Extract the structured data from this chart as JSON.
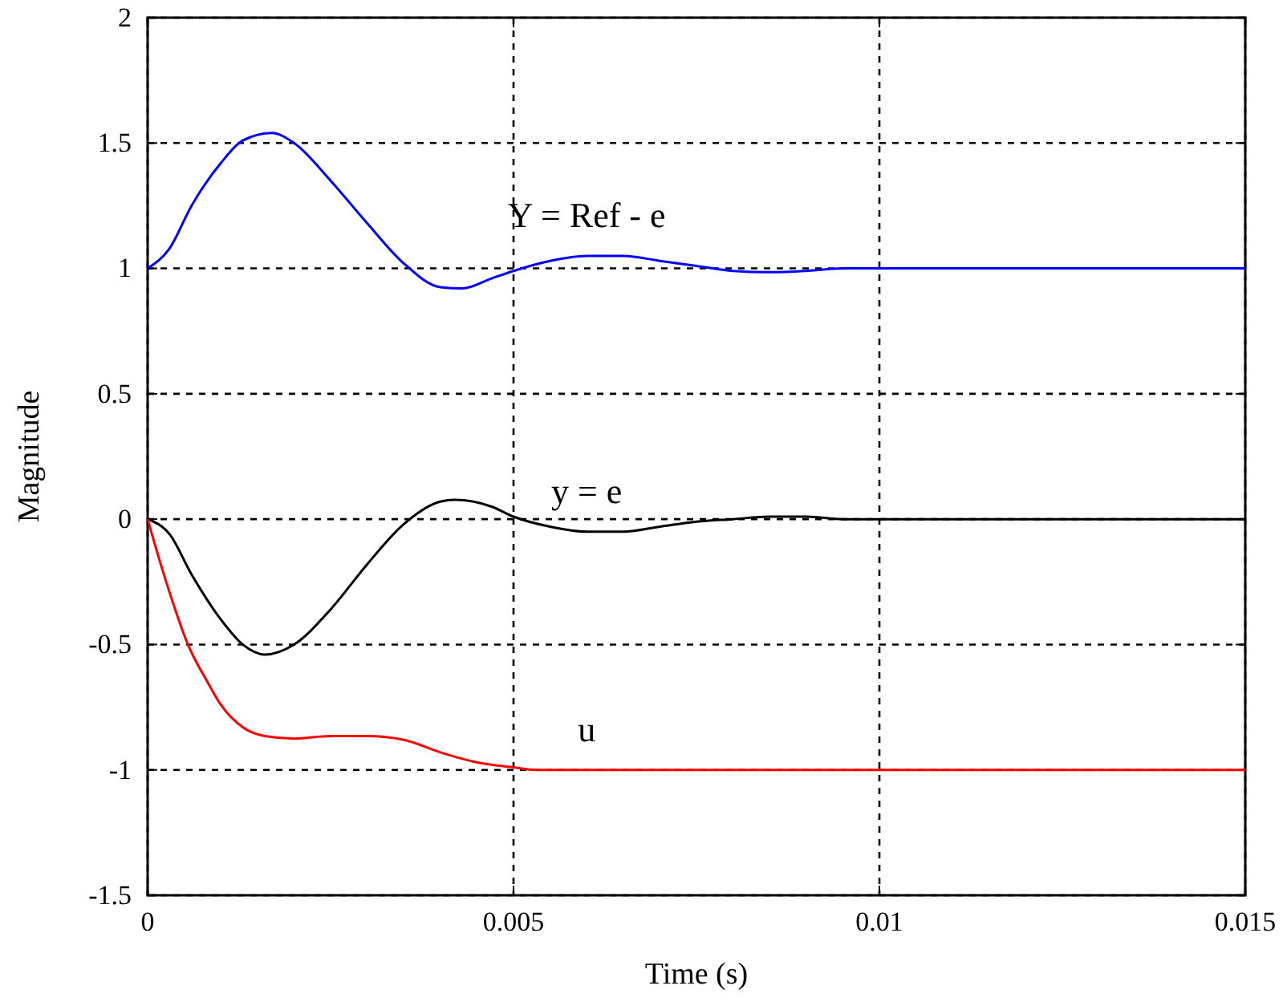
{
  "chart_data": {
    "type": "line",
    "xlabel": "Time (s)",
    "ylabel": "Magnitude",
    "xlim": [
      0,
      0.015
    ],
    "xticks": [
      0,
      0.005,
      0.01,
      0.015
    ],
    "ylim": [
      -1.5,
      2
    ],
    "yticks": [
      -1.5,
      -1,
      -0.5,
      0,
      0.5,
      1,
      1.5,
      2
    ],
    "grid": true,
    "line_style": "solid",
    "marker": "none",
    "series": [
      {
        "name": "Y = Ref - e",
        "color": "#0000ff",
        "x": [
          0,
          0.0003,
          0.0006,
          0.001,
          0.0013,
          0.0017,
          0.002,
          0.0025,
          0.003,
          0.0035,
          0.004,
          0.0043,
          0.0047,
          0.005,
          0.0055,
          0.006,
          0.0065,
          0.007,
          0.0075,
          0.008,
          0.0085,
          0.009,
          0.0095,
          0.015
        ],
        "values": [
          1,
          1.08,
          1.25,
          1.42,
          1.51,
          1.54,
          1.5,
          1.35,
          1.18,
          1.02,
          0.925,
          0.92,
          0.96,
          0.99,
          1.03,
          1.05,
          1.05,
          1.03,
          1.01,
          0.99,
          0.985,
          0.99,
          1,
          1
        ]
      },
      {
        "name": "y = e",
        "color": "#000000",
        "x": [
          0,
          0.0003,
          0.0006,
          0.001,
          0.0013,
          0.0016,
          0.002,
          0.0025,
          0.003,
          0.0035,
          0.004,
          0.0042,
          0.0047,
          0.005,
          0.0055,
          0.006,
          0.0065,
          0.007,
          0.0075,
          0.008,
          0.0085,
          0.009,
          0.0095,
          0.015
        ],
        "values": [
          0,
          -0.06,
          -0.22,
          -0.4,
          -0.5,
          -0.54,
          -0.5,
          -0.36,
          -0.18,
          -0.02,
          0.07,
          0.077,
          0.05,
          0.01,
          -0.03,
          -0.05,
          -0.05,
          -0.03,
          -0.01,
          0,
          0.01,
          0.01,
          0,
          0
        ]
      },
      {
        "name": "u",
        "color": "#ff0000",
        "x": [
          0,
          0.0002,
          0.0004,
          0.00055,
          0.0008,
          0.001,
          0.0013,
          0.0016,
          0.002,
          0.0025,
          0.003,
          0.0035,
          0.004,
          0.0045,
          0.005,
          0.0053,
          0.015
        ],
        "values": [
          0,
          -0.2,
          -0.38,
          -0.5,
          -0.64,
          -0.74,
          -0.83,
          -0.865,
          -0.875,
          -0.865,
          -0.865,
          -0.88,
          -0.93,
          -0.97,
          -0.99,
          -1,
          -1
        ]
      }
    ]
  }
}
